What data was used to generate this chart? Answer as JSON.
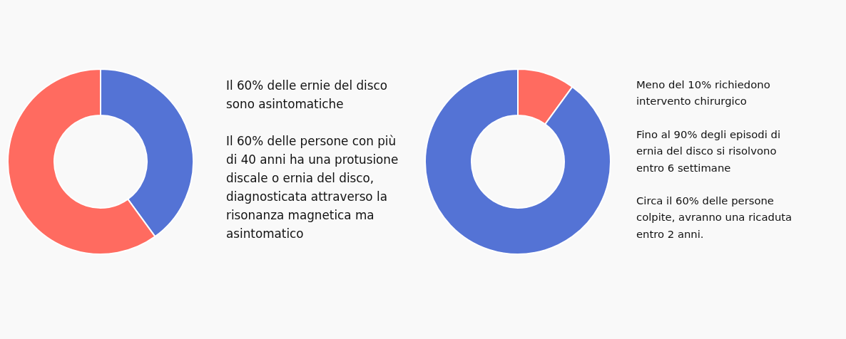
{
  "chart_data": [
    {
      "type": "donut",
      "categories": [
        null,
        null
      ],
      "values": [
        40,
        60
      ],
      "colors": [
        "#5473d5",
        "#ff6b60"
      ],
      "annotations": [
        "Il 60% delle ernie del disco sono asintomatiche",
        "Il 60% delle persone con più di 40 anni ha una protusione discale o ernia del disco, diagnosticata attraverso la risonanza magnetica ma asintomatico"
      ]
    },
    {
      "type": "donut",
      "categories": [
        null,
        null
      ],
      "values": [
        10,
        90
      ],
      "colors": [
        "#ff6b60",
        "#5473d5"
      ],
      "annotations": [
        "Meno del 10% richiedono intervento chirurgico",
        "Fino al 90% degli episodi di ernia del disco si risolvono entro 6 settimane",
        "Circa il 60% delle persone colpite, avranno una ricaduta entro 2 anni."
      ]
    }
  ]
}
